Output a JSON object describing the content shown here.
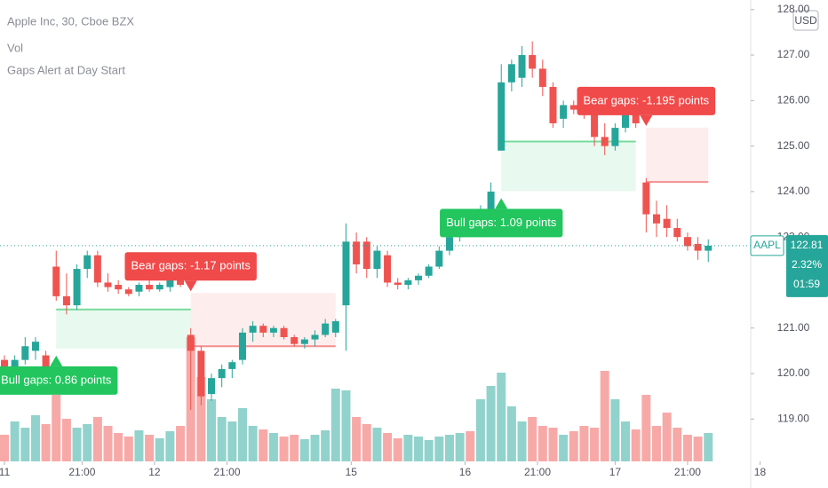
{
  "chart_data": {
    "type": "candlestick",
    "title": "Apple Inc, 30, Cboe BZX",
    "indicators": [
      "Vol",
      "Gaps Alert at Day Start"
    ],
    "currency": "USD",
    "up_color": "#26a69a",
    "down_color": "#ef5350",
    "xlim": [
      -0.43,
      72.1
    ],
    "xticks": [
      {
        "value": 0,
        "label": "11"
      },
      {
        "value": 7.5,
        "label": "21:00"
      },
      {
        "value": 14.5,
        "label": "12"
      },
      {
        "value": 21.5,
        "label": "21:00"
      },
      {
        "value": 33.5,
        "label": "15"
      },
      {
        "value": 44.5,
        "label": "16"
      },
      {
        "value": 51.5,
        "label": "21:00"
      },
      {
        "value": 59,
        "label": "17"
      },
      {
        "value": 66,
        "label": "21:00"
      },
      {
        "value": 73,
        "label": "18"
      }
    ],
    "ylim": [
      118.07,
      128.21
    ],
    "yticks": [
      {
        "value": 119,
        "label": "119.00"
      },
      {
        "value": 120,
        "label": "120.00"
      },
      {
        "value": 121,
        "label": "121.00"
      },
      {
        "value": 123,
        "label": "123.00"
      },
      {
        "value": 124,
        "label": "124.00"
      },
      {
        "value": 125,
        "label": "125.00"
      },
      {
        "value": 126,
        "label": "126.00"
      },
      {
        "value": 127,
        "label": "127.00"
      },
      {
        "value": 128,
        "label": "128.00"
      }
    ],
    "candles": [
      [
        120.3,
        120.4,
        119.9,
        120.0
      ],
      [
        120.0,
        120.4,
        119.8,
        120.3
      ],
      [
        120.3,
        120.8,
        120.2,
        120.6
      ],
      [
        120.5,
        120.8,
        120.3,
        120.7
      ],
      [
        120.4,
        120.5,
        119.9,
        120.0
      ],
      [
        122.35,
        122.7,
        121.6,
        121.7
      ],
      [
        121.7,
        122.2,
        121.3,
        121.5
      ],
      [
        121.5,
        122.4,
        121.4,
        122.3
      ],
      [
        122.3,
        122.7,
        122.1,
        122.6
      ],
      [
        122.6,
        122.7,
        121.9,
        122.0
      ],
      [
        122.0,
        122.2,
        121.8,
        121.9
      ],
      [
        121.95,
        122.05,
        121.75,
        121.85
      ],
      [
        121.85,
        121.9,
        121.7,
        121.75
      ],
      [
        121.8,
        122.0,
        121.7,
        121.95
      ],
      [
        121.95,
        122.05,
        121.8,
        121.85
      ],
      [
        121.85,
        122.0,
        121.8,
        121.95
      ],
      [
        121.9,
        122.2,
        121.8,
        122.1
      ],
      [
        122.1,
        122.2,
        121.9,
        121.95
      ],
      [
        120.85,
        121.0,
        119.2,
        120.5
      ],
      [
        120.5,
        120.6,
        119.3,
        119.5
      ],
      [
        119.55,
        120.0,
        119.4,
        119.9
      ],
      [
        119.9,
        120.2,
        119.7,
        120.1
      ],
      [
        120.1,
        120.3,
        119.9,
        120.25
      ],
      [
        120.3,
        121.0,
        120.2,
        120.9
      ],
      [
        120.9,
        121.15,
        120.7,
        121.05
      ],
      [
        121.05,
        121.1,
        120.8,
        120.9
      ],
      [
        120.9,
        121.05,
        120.8,
        121.0
      ],
      [
        121.0,
        121.05,
        120.75,
        120.8
      ],
      [
        120.8,
        120.85,
        120.6,
        120.65
      ],
      [
        120.65,
        120.8,
        120.55,
        120.75
      ],
      [
        120.75,
        120.95,
        120.6,
        120.85
      ],
      [
        120.85,
        121.2,
        120.8,
        121.1
      ],
      [
        120.9,
        121.2,
        120.8,
        121.15
      ],
      [
        121.5,
        123.3,
        120.5,
        122.9
      ],
      [
        122.9,
        123.1,
        122.2,
        122.4
      ],
      [
        122.9,
        123.0,
        122.1,
        122.3
      ],
      [
        122.3,
        122.8,
        122.1,
        122.7
      ],
      [
        122.6,
        122.7,
        121.9,
        122.0
      ],
      [
        122.0,
        122.1,
        121.85,
        121.95
      ],
      [
        121.95,
        122.1,
        121.85,
        122.05
      ],
      [
        122.05,
        122.2,
        121.95,
        122.15
      ],
      [
        122.15,
        122.4,
        122.1,
        122.35
      ],
      [
        122.35,
        122.8,
        122.3,
        122.7
      ],
      [
        122.7,
        123.1,
        122.6,
        123.0
      ],
      [
        123.0,
        123.3,
        122.9,
        123.2
      ],
      [
        123.2,
        123.4,
        123.0,
        123.1
      ],
      [
        123.1,
        123.7,
        123.0,
        123.5
      ],
      [
        123.5,
        124.2,
        123.4,
        124.0
      ],
      [
        124.9,
        126.8,
        124.9,
        126.4
      ],
      [
        126.4,
        126.9,
        126.2,
        126.8
      ],
      [
        126.5,
        127.2,
        126.3,
        127.0
      ],
      [
        127.0,
        127.3,
        126.5,
        126.7
      ],
      [
        126.7,
        126.9,
        126.1,
        126.3
      ],
      [
        126.3,
        126.4,
        125.4,
        125.5
      ],
      [
        125.6,
        126.0,
        125.4,
        125.9
      ],
      [
        125.9,
        126.0,
        125.7,
        125.8
      ],
      [
        126.3,
        126.3,
        125.6,
        125.8
      ],
      [
        126.0,
        126.1,
        125.0,
        125.2
      ],
      [
        125.2,
        125.5,
        124.8,
        125.0
      ],
      [
        125.0,
        125.5,
        124.9,
        125.4
      ],
      [
        125.4,
        125.9,
        125.3,
        125.7
      ],
      [
        125.75,
        125.8,
        125.4,
        125.5
      ],
      [
        124.2,
        124.3,
        123.1,
        123.5
      ],
      [
        123.5,
        123.8,
        123.0,
        123.3
      ],
      [
        123.4,
        123.7,
        123.0,
        123.2
      ],
      [
        123.2,
        123.4,
        122.9,
        123.0
      ],
      [
        123.0,
        123.1,
        122.7,
        122.8
      ],
      [
        122.85,
        123.0,
        122.5,
        122.7
      ],
      [
        122.7,
        122.95,
        122.45,
        122.81
      ]
    ],
    "volume": [
      30,
      45,
      38,
      52,
      42,
      75,
      48,
      38,
      42,
      50,
      40,
      32,
      28,
      35,
      30,
      26,
      34,
      40,
      140,
      95,
      70,
      50,
      45,
      60,
      40,
      36,
      32,
      28,
      30,
      25,
      30,
      35,
      82,
      80,
      50,
      42,
      38,
      32,
      26,
      30,
      28,
      24,
      28,
      30,
      32,
      34,
      70,
      85,
      100,
      62,
      45,
      50,
      40,
      38,
      30,
      34,
      40,
      38,
      102,
      70,
      45,
      36,
      75,
      40,
      55,
      38,
      30,
      28,
      32
    ],
    "gaps": [
      {
        "label": "Bull gaps: 0.86 points",
        "color": "#22c55e",
        "edge": "top",
        "start": 5,
        "end": 18,
        "top": 121.41,
        "bottom": 120.55
      },
      {
        "label": "Bear gaps: -1.17 points",
        "color": "#f04a4a",
        "edge": "bottom",
        "start": 18,
        "end": 32,
        "top": 121.77,
        "bottom": 120.6
      },
      {
        "label": "Bull gaps: 1.09 points",
        "color": "#22c55e",
        "edge": "top",
        "start": 48,
        "end": 61,
        "top": 125.1,
        "bottom": 124.01
      },
      {
        "label": "Bear gaps: -1.195 points",
        "color": "#f04a4a",
        "edge": "bottom",
        "start": 62,
        "end": 68,
        "top": 125.405,
        "bottom": 124.21
      }
    ],
    "last": {
      "symbol": "AAPL",
      "price": 122.81,
      "change": "2.32%",
      "countdown": "01:59",
      "color": "#26a69a"
    }
  }
}
